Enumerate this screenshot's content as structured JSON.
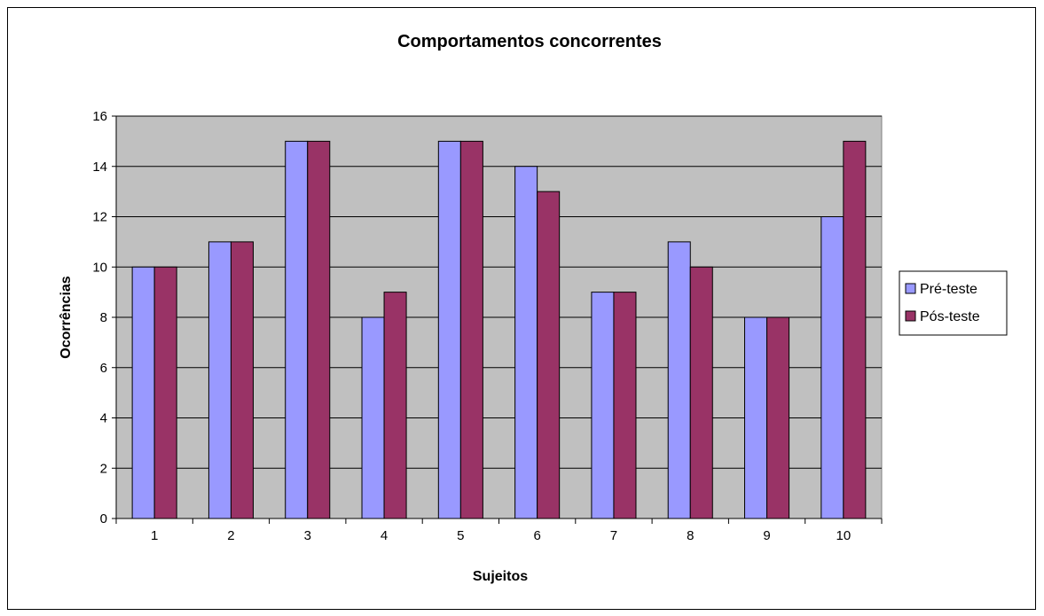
{
  "chart_data": {
    "type": "bar",
    "title": "Comportamentos concorrentes",
    "xlabel": "Sujeitos",
    "ylabel": "Ocorrências",
    "categories": [
      "1",
      "2",
      "3",
      "4",
      "5",
      "6",
      "7",
      "8",
      "9",
      "10"
    ],
    "ylim": [
      0,
      16
    ],
    "yticks": [
      "0",
      "2",
      "4",
      "6",
      "8",
      "10",
      "12",
      "14",
      "16"
    ],
    "grid": true,
    "legend_position": "right",
    "plot_background": "#C0C0C0",
    "series": [
      {
        "name": "Pré-teste",
        "color": "#9999FF",
        "values": [
          10,
          11,
          15,
          8,
          15,
          14,
          9,
          11,
          8,
          12
        ]
      },
      {
        "name": "Pós-teste",
        "color": "#993366",
        "values": [
          10,
          11,
          15,
          9,
          15,
          13,
          9,
          10,
          8,
          15
        ]
      }
    ]
  }
}
